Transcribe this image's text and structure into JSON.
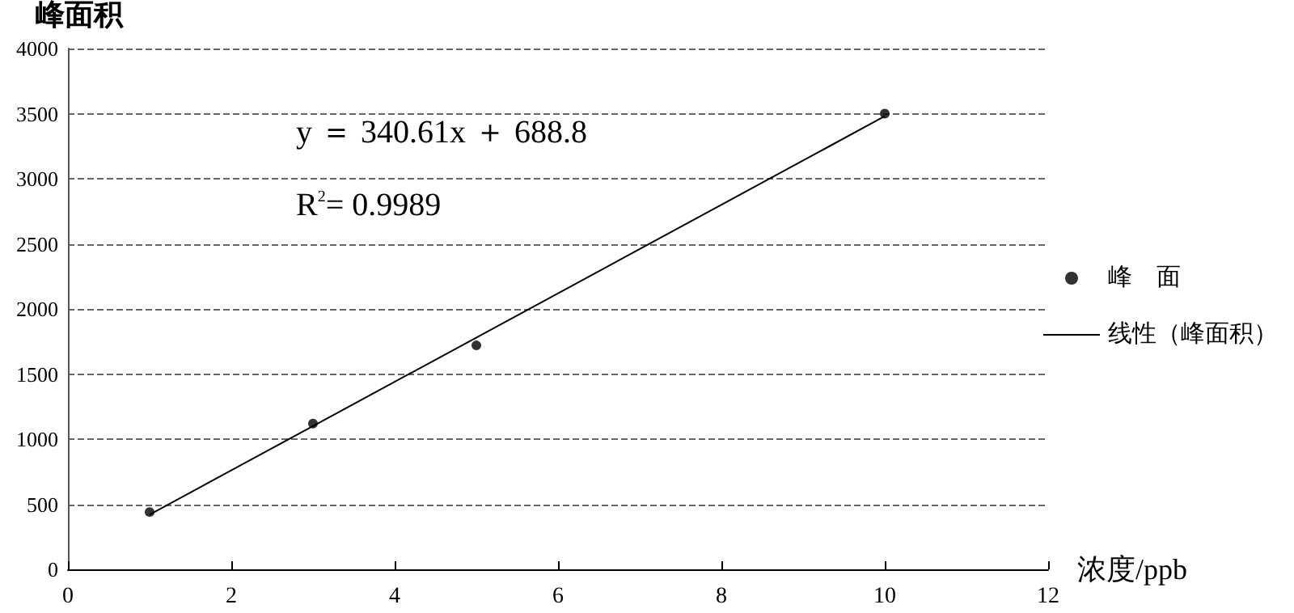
{
  "chart_data": {
    "type": "scatter",
    "xlabel": "浓度/ppb",
    "ylabel": "峰面积",
    "x": [
      1,
      3,
      5,
      10
    ],
    "series": [
      {
        "name": "峰　面",
        "color": "#000000",
        "marker": "circle",
        "values": [
          440,
          1120,
          1720,
          3500
        ]
      },
      {
        "name": "线性（峰面积）",
        "type": "line",
        "color": "#000000",
        "marker": "none",
        "line_style": "solid",
        "x": [
          1,
          10
        ],
        "values": [
          420,
          3480
        ]
      }
    ],
    "annotations": [
      "y ＝ 340.61x ＋ 688.8",
      "R$^{2}$= 0.9989"
    ],
    "xlim": [
      0,
      12
    ],
    "xticks": [
      0,
      2,
      4,
      6,
      8,
      10,
      12
    ],
    "ylim": [
      0,
      4000
    ],
    "yticks": [
      0,
      500,
      1000,
      1500,
      2000,
      2500,
      3000,
      3500,
      4000
    ],
    "grid": "y",
    "legend": "right"
  }
}
